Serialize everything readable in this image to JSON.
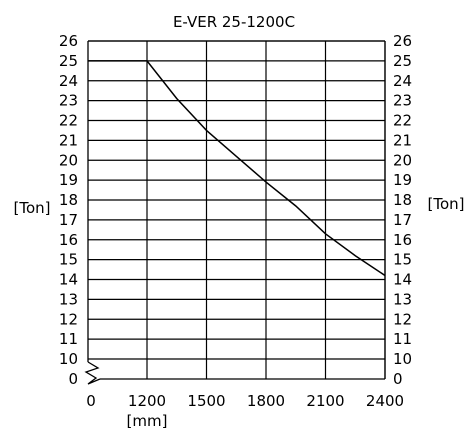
{
  "chart_data": {
    "type": "line",
    "title": "E-VER 25-1200C",
    "xlabel": "[mm]",
    "ylabel_left": "[Ton]",
    "ylabel_right": "[Ton]",
    "x_ticks": [
      0,
      1200,
      1500,
      1800,
      2100,
      2400
    ],
    "y_ticks": [
      0,
      10,
      11,
      12,
      13,
      14,
      15,
      16,
      17,
      18,
      19,
      20,
      21,
      22,
      23,
      24,
      25,
      26
    ],
    "axis_break": true,
    "xlim": [
      1200,
      2400
    ],
    "ylim": [
      10,
      26
    ],
    "grid": true,
    "series": [
      {
        "x": [
          0,
          1200,
          1350,
          1500,
          1650,
          1800,
          1950,
          2100,
          2250,
          2400
        ],
        "y": [
          25,
          25,
          23.1,
          21.5,
          20.2,
          18.9,
          17.7,
          16.3,
          15.2,
          14.2
        ]
      }
    ]
  }
}
